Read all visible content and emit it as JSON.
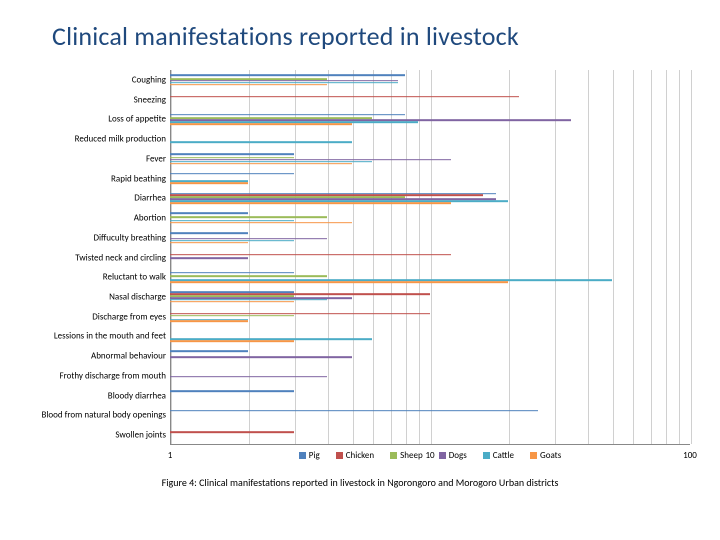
{
  "title": "Clinical manifestations reported in livestock",
  "caption": "Figure 4: Clinical manifestations reported in livestock in Ngorongoro and Morogoro Urban districts",
  "chart": {
    "type": "bar-horizontal-grouped-log",
    "x_scale": "log",
    "x_min": 1,
    "x_max": 100,
    "x_ticks": [
      1,
      10,
      100
    ],
    "grid_color": "#d0d0d0",
    "axis_color": "#888888",
    "label_fontsize": 9,
    "series": [
      {
        "name": "Pig",
        "color": "#4f81bd"
      },
      {
        "name": "Chicken",
        "color": "#c0504d"
      },
      {
        "name": "Sheep",
        "color": "#9bbb59"
      },
      {
        "name": "Dogs",
        "color": "#8064a2"
      },
      {
        "name": "Cattle",
        "color": "#4bacc6"
      },
      {
        "name": "Goats",
        "color": "#f79646"
      }
    ],
    "categories": [
      {
        "label": "Coughing",
        "values": [
          8,
          1,
          4,
          7.5,
          7.5,
          4
        ]
      },
      {
        "label": "Sneezing",
        "values": [
          1,
          22,
          1,
          1,
          1,
          1
        ]
      },
      {
        "label": "Loss of appetite",
        "values": [
          8,
          1,
          6,
          35,
          9,
          5
        ]
      },
      {
        "label": "Reduced milk production",
        "values": [
          1,
          1,
          1,
          1,
          5,
          1
        ]
      },
      {
        "label": "Fever",
        "values": [
          3,
          1,
          3,
          12,
          6,
          5
        ]
      },
      {
        "label": "Rapid beathing",
        "values": [
          3,
          1,
          1,
          1,
          2,
          2
        ]
      },
      {
        "label": "Diarrhea",
        "values": [
          18,
          16,
          8,
          18,
          20,
          12
        ]
      },
      {
        "label": "Abortion",
        "values": [
          2,
          1,
          4,
          1,
          3,
          5
        ]
      },
      {
        "label": "Diffuculty breathing",
        "values": [
          2,
          1,
          1,
          4,
          3,
          2
        ]
      },
      {
        "label": "Twisted neck and circling",
        "values": [
          1,
          12,
          1,
          2,
          1,
          1
        ]
      },
      {
        "label": "Reluctant to walk",
        "values": [
          3,
          1,
          4,
          1,
          50,
          20
        ]
      },
      {
        "label": "Nasal discharge",
        "values": [
          3,
          10,
          3,
          5,
          4,
          3
        ]
      },
      {
        "label": "Discharge from eyes",
        "values": [
          1,
          10,
          3,
          1,
          2,
          2
        ]
      },
      {
        "label": "Lessions in the mouth and feet",
        "values": [
          1,
          1,
          1,
          1,
          6,
          3
        ]
      },
      {
        "label": "Abnormal behaviour",
        "values": [
          2,
          1,
          1,
          5,
          1,
          1
        ]
      },
      {
        "label": "Frothy discharge from mouth",
        "values": [
          1,
          1,
          1,
          4,
          1,
          1
        ]
      },
      {
        "label": "Bloody diarrhea",
        "values": [
          3,
          1,
          1,
          1,
          1,
          1
        ]
      },
      {
        "label": "Blood from natural body openings",
        "values": [
          26,
          1,
          1,
          1,
          1,
          1
        ]
      },
      {
        "label": "Swollen joints",
        "values": [
          1,
          3,
          1,
          1,
          1,
          1
        ]
      }
    ]
  }
}
